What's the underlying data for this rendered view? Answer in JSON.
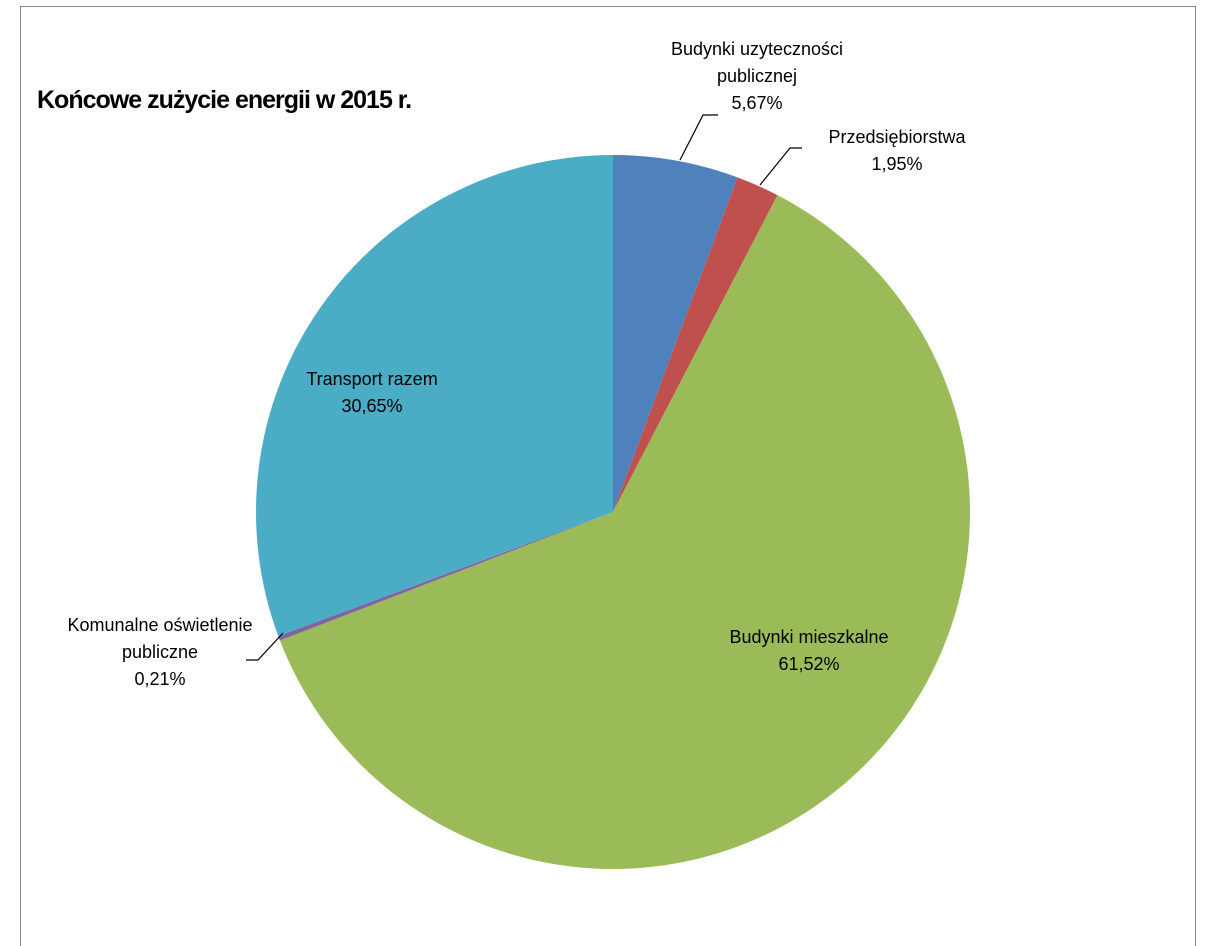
{
  "chart_data": {
    "type": "pie",
    "title": "Końcowe zużycie energii w 2015 r.",
    "categories": [
      "Budynki uzyteczności publicznej",
      "Przedsiębiorstwa",
      "Budynki mieszkalne",
      "Komunalne oświetlenie publiczne",
      "Transport razem"
    ],
    "values": [
      5.67,
      1.95,
      61.52,
      0.21,
      30.65
    ],
    "value_labels": [
      "5,67%",
      "1,95%",
      "61,52%",
      "0,21%",
      "30,65%"
    ],
    "colors": [
      "#4f81bd",
      "#c0504d",
      "#9bbb59",
      "#8064a2",
      "#4bacc6"
    ]
  }
}
